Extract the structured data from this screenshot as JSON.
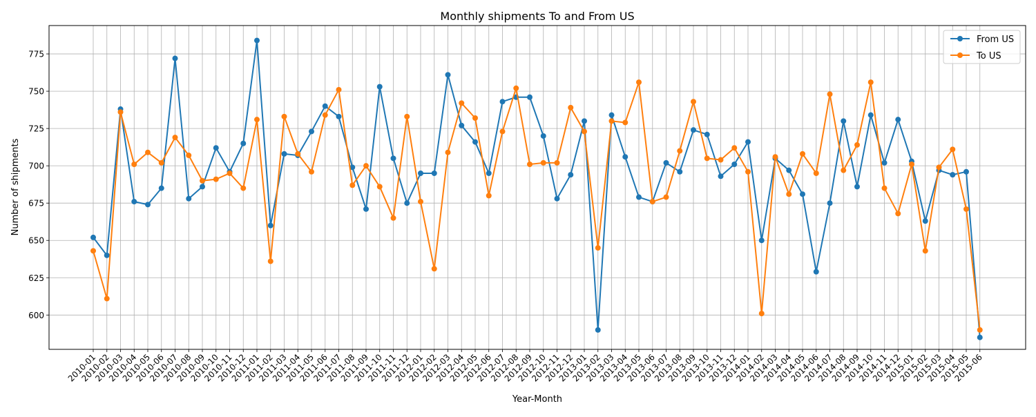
{
  "chart_data": {
    "type": "line",
    "title": "Monthly shipments To and From US",
    "xlabel": "Year-Month",
    "ylabel": "Number of shipments",
    "ylim": [
      577,
      794
    ],
    "yticks": [
      600,
      625,
      650,
      675,
      700,
      725,
      750,
      775
    ],
    "grid": true,
    "legend_position": "top-right",
    "categories": [
      "2010-01",
      "2010-02",
      "2010-03",
      "2010-04",
      "2010-05",
      "2010-06",
      "2010-07",
      "2010-08",
      "2010-09",
      "2010-10",
      "2010-11",
      "2010-12",
      "2011-01",
      "2011-02",
      "2011-03",
      "2011-04",
      "2011-05",
      "2011-06",
      "2011-07",
      "2011-08",
      "2011-09",
      "2011-10",
      "2011-11",
      "2011-12",
      "2012-01",
      "2012-02",
      "2012-03",
      "2012-04",
      "2012-05",
      "2012-06",
      "2012-07",
      "2012-08",
      "2012-09",
      "2012-10",
      "2012-11",
      "2012-12",
      "2013-01",
      "2013-02",
      "2013-03",
      "2013-04",
      "2013-05",
      "2013-06",
      "2013-07",
      "2013-08",
      "2013-09",
      "2013-10",
      "2013-11",
      "2013-12",
      "2014-01",
      "2014-02",
      "2014-03",
      "2014-04",
      "2014-05",
      "2014-06",
      "2014-07",
      "2014-08",
      "2014-09",
      "2014-10",
      "2014-11",
      "2014-12",
      "2015-01",
      "2015-02",
      "2015-03",
      "2015-04",
      "2015-05",
      "2015-06"
    ],
    "series": [
      {
        "name": "From US",
        "color": "#1f77b4",
        "values": [
          652,
          640,
          738,
          676,
          674,
          685,
          772,
          678,
          686,
          712,
          696,
          715,
          784,
          660,
          708,
          707,
          723,
          740,
          733,
          699,
          671,
          753,
          705,
          675,
          695,
          695,
          761,
          727,
          716,
          695,
          743,
          746,
          746,
          720,
          678,
          694,
          730,
          590,
          734,
          706,
          679,
          676,
          702,
          696,
          724,
          721,
          693,
          701,
          716,
          650,
          705,
          697,
          681,
          629,
          675,
          730,
          686,
          734,
          702,
          731,
          703,
          663,
          697,
          694,
          696,
          585
        ]
      },
      {
        "name": "To US",
        "color": "#ff7f0e",
        "values": [
          643,
          611,
          736,
          701,
          709,
          702,
          719,
          707,
          690,
          691,
          695,
          685,
          731,
          636,
          733,
          708,
          696,
          734,
          751,
          687,
          700,
          686,
          665,
          733,
          676,
          631,
          709,
          742,
          732,
          680,
          723,
          752,
          701,
          702,
          702,
          739,
          723,
          645,
          730,
          729,
          756,
          676,
          679,
          710,
          743,
          705,
          704,
          712,
          696,
          601,
          706,
          681,
          708,
          695,
          748,
          697,
          714,
          756,
          685,
          668,
          701,
          643,
          699,
          711,
          671,
          590
        ]
      }
    ]
  }
}
